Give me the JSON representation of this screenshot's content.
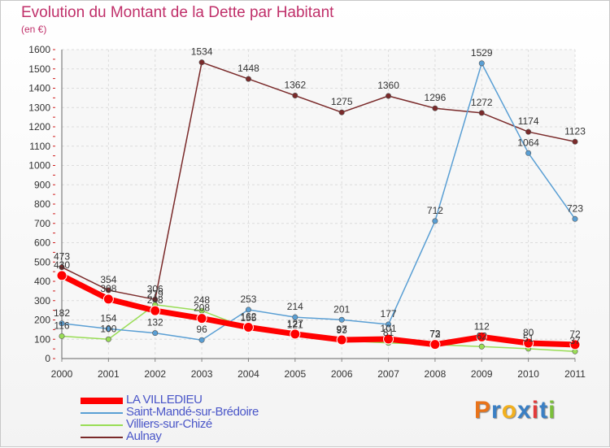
{
  "chart_data": {
    "type": "line",
    "title": "Evolution du Montant de la Dette par Habitant",
    "subtitle": "(en €)",
    "xlabel": "",
    "ylabel": "",
    "categories": [
      "2000",
      "2001",
      "2002",
      "2003",
      "2004",
      "2005",
      "2006",
      "2007",
      "2008",
      "2009",
      "2010",
      "2011"
    ],
    "ylim": [
      0,
      1600
    ],
    "yticks": [
      0,
      100,
      200,
      300,
      400,
      500,
      600,
      700,
      800,
      900,
      1000,
      1100,
      1200,
      1300,
      1400,
      1500,
      1600
    ],
    "grid": true,
    "legend_position": "bottom-left",
    "series": [
      {
        "name": "LA VILLEDIEU",
        "color": "#ff0000",
        "values": [
          430,
          308,
          248,
          208,
          162,
          127,
          97,
          101,
          73,
          112,
          80,
          72
        ],
        "labels": [
          "430",
          "308",
          "248",
          "208",
          "162",
          "127",
          "97",
          "101",
          "73",
          "112",
          "80",
          "72"
        ]
      },
      {
        "name": "Saint-Mandé-sur-Brédoire",
        "color": "#5a9fd4",
        "values": [
          182,
          154,
          132,
          96,
          253,
          214,
          201,
          177,
          712,
          1529,
          1064,
          723
        ],
        "labels": [
          "182",
          "154",
          "132",
          "96",
          "253",
          "214",
          "201",
          "177",
          "712",
          "1529",
          "1064",
          "723"
        ]
      },
      {
        "name": "Villiers-sur-Chizé",
        "color": "#99dd55",
        "values": [
          116,
          100,
          279,
          248,
          155,
          121,
          93,
          81,
          72,
          62,
          51,
          37
        ],
        "labels": [
          "116",
          "100",
          "279",
          "248",
          "155",
          "121",
          "93",
          "81",
          "72",
          "62",
          "51",
          "37"
        ]
      },
      {
        "name": "Aulnay",
        "color": "#7a2a2a",
        "values": [
          473,
          354,
          306,
          1534,
          1448,
          1362,
          1275,
          1360,
          1296,
          1272,
          1174,
          1123
        ],
        "labels": [
          "473",
          "354",
          "306",
          "1534",
          "1448",
          "1362",
          "1275",
          "1360",
          "1296",
          "1272",
          "1174",
          "1123"
        ]
      }
    ]
  },
  "logo": {
    "text": "Proxiti",
    "colors": [
      "#e8731a",
      "#3a7fc4",
      "#f2b01e",
      "#3a7fc4",
      "#e23b3b",
      "#3a7fc4",
      "#7bbf3a"
    ]
  }
}
